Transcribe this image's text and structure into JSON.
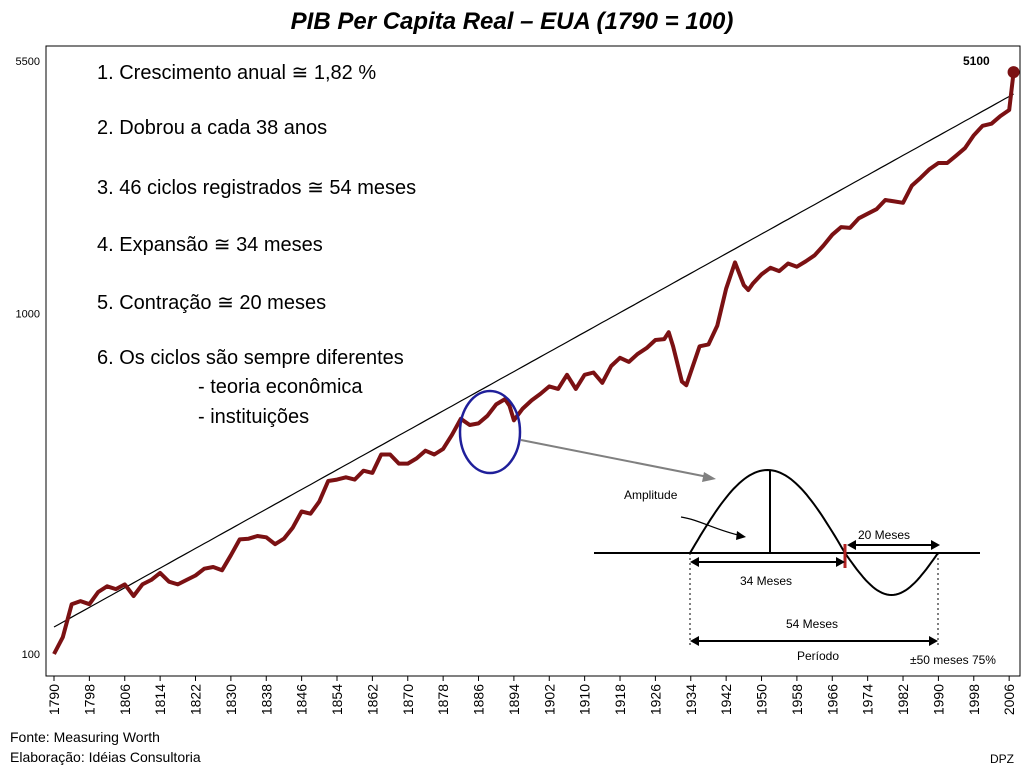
{
  "chart_data": {
    "type": "line",
    "title": "PIB Per Capita Real – EUA (1790 = 100)",
    "y_scale": "log",
    "ylim": [
      100,
      5500
    ],
    "xlim": [
      1790,
      2008
    ],
    "y_ticks": [
      "100",
      "1000",
      "5500"
    ],
    "x_ticks": [
      "1790",
      "1798",
      "1806",
      "1814",
      "1822",
      "1830",
      "1838",
      "1846",
      "1854",
      "1862",
      "1870",
      "1878",
      "1886",
      "1894",
      "1902",
      "1910",
      "1918",
      "1926",
      "1934",
      "1942",
      "1950",
      "1958",
      "1966",
      "1974",
      "1982",
      "1990",
      "1998",
      "2006"
    ],
    "series": [
      {
        "color": "#7b1113",
        "points": [
          [
            1790,
            100
          ],
          [
            1792,
            112
          ],
          [
            1794,
            140
          ],
          [
            1796,
            143
          ],
          [
            1798,
            140
          ],
          [
            1800,
            152
          ],
          [
            1802,
            158
          ],
          [
            1804,
            155
          ],
          [
            1806,
            160
          ],
          [
            1808,
            148
          ],
          [
            1810,
            160
          ],
          [
            1812,
            165
          ],
          [
            1814,
            173
          ],
          [
            1816,
            163
          ],
          [
            1818,
            160
          ],
          [
            1820,
            165
          ],
          [
            1822,
            170
          ],
          [
            1824,
            178
          ],
          [
            1826,
            180
          ],
          [
            1828,
            176
          ],
          [
            1830,
            195
          ],
          [
            1832,
            217
          ],
          [
            1834,
            218
          ],
          [
            1836,
            222
          ],
          [
            1838,
            220
          ],
          [
            1840,
            210
          ],
          [
            1842,
            218
          ],
          [
            1844,
            235
          ],
          [
            1846,
            262
          ],
          [
            1848,
            258
          ],
          [
            1850,
            280
          ],
          [
            1852,
            322
          ],
          [
            1854,
            325
          ],
          [
            1856,
            330
          ],
          [
            1858,
            325
          ],
          [
            1860,
            345
          ],
          [
            1862,
            340
          ],
          [
            1864,
            385
          ],
          [
            1866,
            385
          ],
          [
            1868,
            362
          ],
          [
            1870,
            362
          ],
          [
            1872,
            375
          ],
          [
            1874,
            395
          ],
          [
            1876,
            385
          ],
          [
            1878,
            400
          ],
          [
            1880,
            440
          ],
          [
            1882,
            490
          ],
          [
            1884,
            470
          ],
          [
            1886,
            475
          ],
          [
            1888,
            500
          ],
          [
            1890,
            540
          ],
          [
            1892,
            560
          ],
          [
            1893,
            535
          ],
          [
            1894,
            485
          ],
          [
            1896,
            525
          ],
          [
            1898,
            555
          ],
          [
            1900,
            580
          ],
          [
            1902,
            610
          ],
          [
            1904,
            600
          ],
          [
            1906,
            660
          ],
          [
            1908,
            600
          ],
          [
            1910,
            660
          ],
          [
            1912,
            670
          ],
          [
            1914,
            625
          ],
          [
            1916,
            700
          ],
          [
            1918,
            740
          ],
          [
            1920,
            720
          ],
          [
            1922,
            760
          ],
          [
            1924,
            790
          ],
          [
            1926,
            835
          ],
          [
            1928,
            840
          ],
          [
            1929,
            880
          ],
          [
            1930,
            800
          ],
          [
            1932,
            630
          ],
          [
            1933,
            615
          ],
          [
            1936,
            800
          ],
          [
            1938,
            810
          ],
          [
            1940,
            920
          ],
          [
            1942,
            1180
          ],
          [
            1944,
            1410
          ],
          [
            1946,
            1210
          ],
          [
            1947,
            1170
          ],
          [
            1948,
            1220
          ],
          [
            1950,
            1300
          ],
          [
            1952,
            1360
          ],
          [
            1954,
            1330
          ],
          [
            1956,
            1400
          ],
          [
            1958,
            1370
          ],
          [
            1960,
            1420
          ],
          [
            1962,
            1480
          ],
          [
            1964,
            1580
          ],
          [
            1966,
            1700
          ],
          [
            1968,
            1790
          ],
          [
            1970,
            1780
          ],
          [
            1972,
            1900
          ],
          [
            1974,
            1960
          ],
          [
            1976,
            2020
          ],
          [
            1978,
            2150
          ],
          [
            1980,
            2130
          ],
          [
            1982,
            2110
          ],
          [
            1984,
            2370
          ],
          [
            1986,
            2500
          ],
          [
            1988,
            2650
          ],
          [
            1990,
            2760
          ],
          [
            1992,
            2760
          ],
          [
            1994,
            2900
          ],
          [
            1996,
            3050
          ],
          [
            1998,
            3330
          ],
          [
            2000,
            3550
          ],
          [
            2002,
            3600
          ],
          [
            2004,
            3790
          ],
          [
            2006,
            3950
          ],
          [
            2007,
            5100
          ]
        ]
      },
      {
        "color": "#000000",
        "trend": "exponential",
        "points": [
          [
            1790,
            120
          ],
          [
            2007,
            4400
          ]
        ]
      }
    ],
    "annotations": {
      "end_label": "5100",
      "notes": [
        "1. Crescimento anual ≅ 1,82 %",
        "2. Dobrou a cada 38 anos",
        "3. 46 ciclos registrados ≅ 54 meses",
        "4. Expansão ≅ 34 meses",
        "5. Contração ≅ 20 meses",
        "6. Os ciclos são sempre diferentes",
        "- teoria econômica",
        "- instituições"
      ]
    }
  },
  "diagram": {
    "amplitude": "Amplitude",
    "contraction": "20 Meses",
    "expansion": "34 Meses",
    "cycle": "54 Meses",
    "period": "Período",
    "footnote": "±50 meses 75%"
  },
  "footer": {
    "source": "Fonte: Measuring Worth",
    "elaboration": "Elaboração: Idéias Consultoria",
    "author": "DPZ"
  },
  "colors": {
    "series": "#7b1113",
    "trend": "#000000",
    "highlight_circle": "#1f1f9a",
    "arrow": "#808080"
  }
}
